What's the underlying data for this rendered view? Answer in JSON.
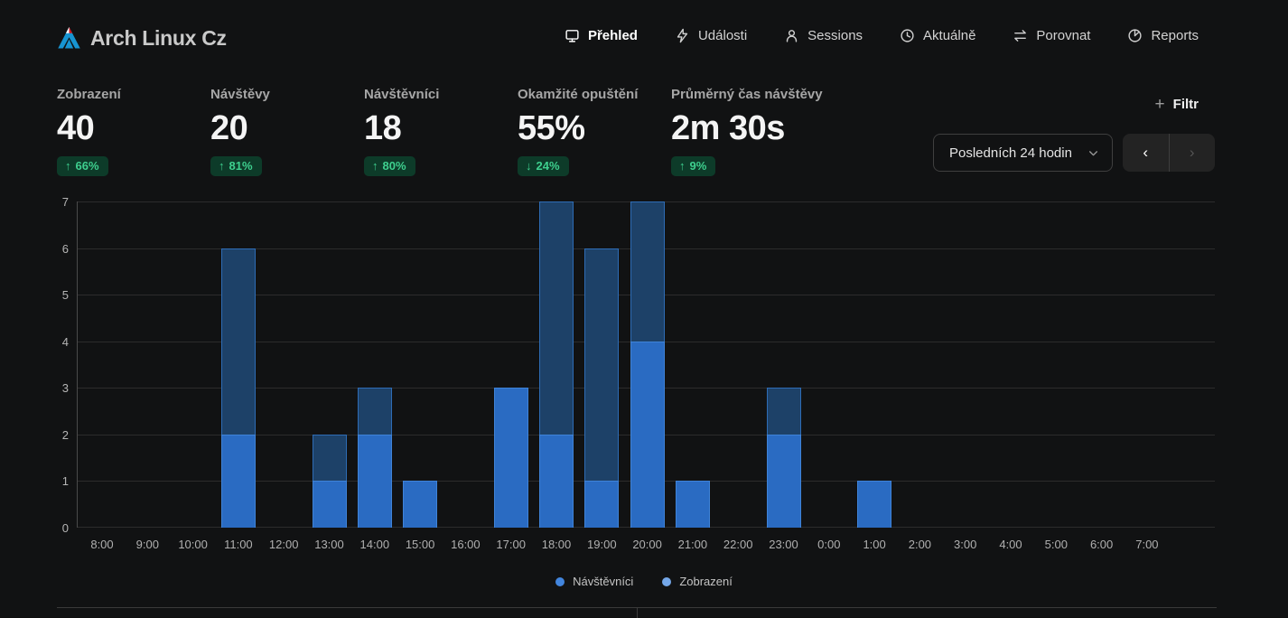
{
  "site": {
    "title": "Arch Linux Cz"
  },
  "nav": {
    "items": [
      {
        "label": "Přehled",
        "icon": "monitor-icon",
        "active": true
      },
      {
        "label": "Události",
        "icon": "lightning-icon",
        "active": false
      },
      {
        "label": "Sessions",
        "icon": "user-icon",
        "active": false
      },
      {
        "label": "Aktuálně",
        "icon": "clock-icon",
        "active": false
      },
      {
        "label": "Porovnat",
        "icon": "compare-arrows-icon",
        "active": false
      },
      {
        "label": "Reports",
        "icon": "pie-chart-icon",
        "active": false
      }
    ]
  },
  "stats": {
    "items": [
      {
        "label": "Zobrazení",
        "value": "40",
        "change": "66%",
        "direction": "up"
      },
      {
        "label": "Návštěvy",
        "value": "20",
        "change": "81%",
        "direction": "up"
      },
      {
        "label": "Návštěvníci",
        "value": "18",
        "change": "80%",
        "direction": "up"
      },
      {
        "label": "Okamžité opuštění",
        "value": "55%",
        "change": "24%",
        "direction": "down"
      },
      {
        "label": "Průměrný čas návštěvy",
        "value": "2m 30s",
        "change": "9%",
        "direction": "up"
      }
    ],
    "badge_colors": {
      "background": "#0d3b29",
      "text": "#3ecf8e"
    }
  },
  "controls": {
    "filter_label": "Filtr",
    "plus_glyph": "+",
    "date_range_label": "Posledních 24 hodin",
    "prev_glyph": "‹",
    "next_glyph": "›"
  },
  "chart_data": {
    "type": "bar",
    "title": "",
    "xlabel": "",
    "ylabel": "",
    "ylim": [
      0,
      7
    ],
    "yticks": [
      0,
      1,
      2,
      3,
      4,
      5,
      6,
      7
    ],
    "grid": "horizontal",
    "legend_position": "bottom-center",
    "categories": [
      "8:00",
      "9:00",
      "10:00",
      "11:00",
      "12:00",
      "13:00",
      "14:00",
      "15:00",
      "16:00",
      "17:00",
      "18:00",
      "19:00",
      "20:00",
      "21:00",
      "22:00",
      "23:00",
      "0:00",
      "1:00",
      "2:00",
      "3:00",
      "4:00",
      "5:00",
      "6:00",
      "7:00"
    ],
    "series": [
      {
        "name": "Zobrazení",
        "values": [
          0,
          0,
          0,
          6,
          0,
          2,
          3,
          1,
          0,
          3,
          7,
          6,
          7,
          1,
          0,
          3,
          0,
          1,
          0,
          0,
          0,
          0,
          0,
          0
        ],
        "fill": "#1d4168",
        "border": "#2e6cb5",
        "legend_dot": "#74a7e8"
      },
      {
        "name": "Návštěvníci",
        "values": [
          0,
          0,
          0,
          2,
          0,
          1,
          2,
          1,
          0,
          3,
          2,
          1,
          4,
          1,
          0,
          2,
          0,
          1,
          0,
          0,
          0,
          0,
          0,
          0
        ],
        "fill": "#2a6bc2",
        "border": "#3f83d8",
        "legend_dot": "#4285dd"
      }
    ]
  },
  "legend": {
    "items": [
      {
        "label": "Návštěvníci",
        "color": "#4285dd"
      },
      {
        "label": "Zobrazení",
        "color": "#74a7e8"
      }
    ]
  }
}
